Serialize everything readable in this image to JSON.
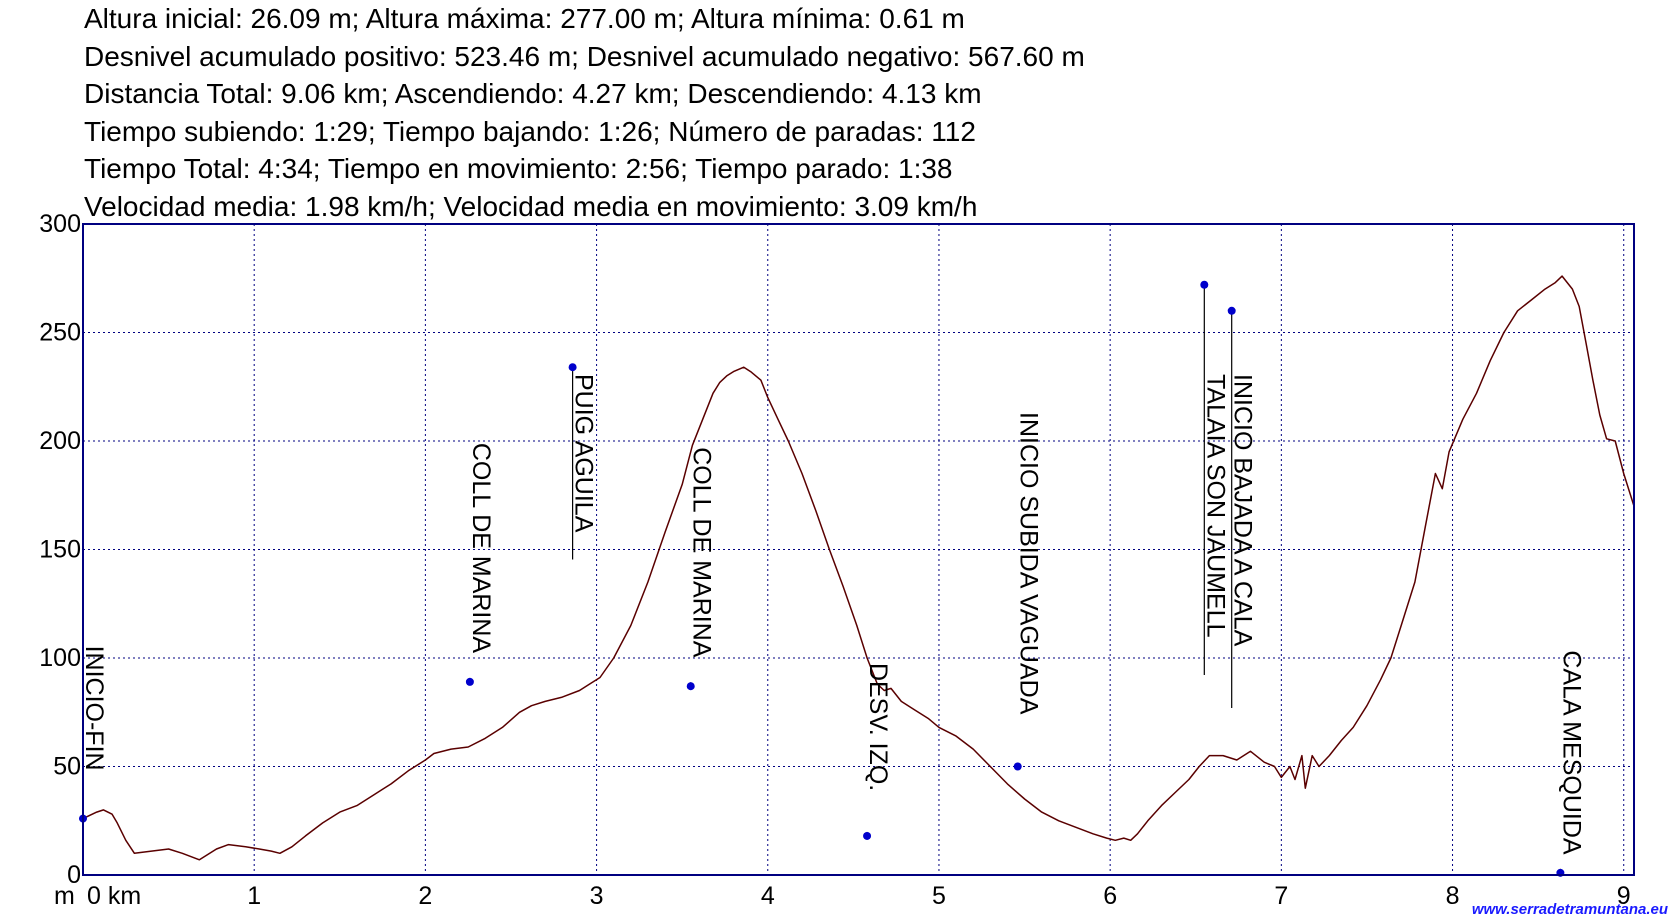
{
  "stats": [
    "Altura inicial: 26.09 m; Altura máxima: 277.00 m; Altura mínima: 0.61 m",
    "Desnivel acumulado positivo: 523.46 m; Desnivel acumulado negativo: 567.60 m",
    "Distancia Total: 9.06 km; Ascendiendo: 4.27 km; Descendiendo: 4.13 km",
    "Tiempo subiendo: 1:29; Tiempo bajando: 1:26; Número de paradas: 112",
    "Tiempo Total: 4:34; Tiempo en movimiento: 2:56; Tiempo parado: 1:38",
    "Velocidad media: 1.98 km/h; Velocidad media en movimiento: 3.09 km/h"
  ],
  "watermark": "www.serradetramuntana.eu",
  "chart_data": {
    "type": "line",
    "title": "",
    "xlabel": "km",
    "ylabel": "m",
    "xlim": [
      0,
      9.06
    ],
    "ylim": [
      0,
      300
    ],
    "x_ticks": [
      0,
      1,
      2,
      3,
      4,
      5,
      6,
      7,
      8,
      9
    ],
    "x_tick_labels": [
      "0 km",
      "1",
      "2",
      "3",
      "4",
      "5",
      "6",
      "7",
      "8",
      "9"
    ],
    "y_ticks": [
      0,
      50,
      100,
      150,
      200,
      250,
      300
    ],
    "y_tick_labels": [
      "0",
      "50",
      "100",
      "150",
      "200",
      "250",
      "300"
    ],
    "grid": true,
    "line_color": "#5a0000",
    "marker_color": "#0000cc",
    "profile": [
      [
        0.0,
        26
      ],
      [
        0.08,
        29
      ],
      [
        0.12,
        30
      ],
      [
        0.17,
        28
      ],
      [
        0.2,
        24
      ],
      [
        0.25,
        16
      ],
      [
        0.3,
        10
      ],
      [
        0.4,
        11
      ],
      [
        0.5,
        12
      ],
      [
        0.58,
        10
      ],
      [
        0.68,
        7
      ],
      [
        0.78,
        12
      ],
      [
        0.85,
        14
      ],
      [
        0.95,
        13
      ],
      [
        1.03,
        12
      ],
      [
        1.1,
        11
      ],
      [
        1.15,
        10
      ],
      [
        1.22,
        13
      ],
      [
        1.3,
        18
      ],
      [
        1.4,
        24
      ],
      [
        1.5,
        29
      ],
      [
        1.6,
        32
      ],
      [
        1.7,
        37
      ],
      [
        1.8,
        42
      ],
      [
        1.9,
        48
      ],
      [
        2.0,
        53
      ],
      [
        2.05,
        56
      ],
      [
        2.15,
        58
      ],
      [
        2.25,
        59
      ],
      [
        2.35,
        63
      ],
      [
        2.45,
        68
      ],
      [
        2.55,
        75
      ],
      [
        2.62,
        78
      ],
      [
        2.7,
        80
      ],
      [
        2.8,
        82
      ],
      [
        2.9,
        85
      ],
      [
        2.96,
        88
      ],
      [
        3.02,
        91
      ],
      [
        3.1,
        100
      ],
      [
        3.2,
        115
      ],
      [
        3.3,
        135
      ],
      [
        3.4,
        158
      ],
      [
        3.5,
        180
      ],
      [
        3.56,
        198
      ],
      [
        3.62,
        210
      ],
      [
        3.68,
        222
      ],
      [
        3.72,
        227
      ],
      [
        3.76,
        230
      ],
      [
        3.8,
        232
      ],
      [
        3.86,
        234
      ],
      [
        3.9,
        232
      ],
      [
        3.96,
        228
      ],
      [
        4.0,
        220
      ],
      [
        4.06,
        210
      ],
      [
        4.12,
        200
      ],
      [
        4.2,
        185
      ],
      [
        4.28,
        168
      ],
      [
        4.36,
        150
      ],
      [
        4.44,
        133
      ],
      [
        4.52,
        115
      ],
      [
        4.58,
        100
      ],
      [
        4.64,
        88
      ],
      [
        4.68,
        85
      ],
      [
        4.72,
        86
      ],
      [
        4.78,
        80
      ],
      [
        4.86,
        76
      ],
      [
        4.94,
        72
      ],
      [
        5.0,
        68
      ],
      [
        5.1,
        64
      ],
      [
        5.2,
        58
      ],
      [
        5.3,
        50
      ],
      [
        5.4,
        42
      ],
      [
        5.5,
        35
      ],
      [
        5.6,
        29
      ],
      [
        5.7,
        25
      ],
      [
        5.8,
        22
      ],
      [
        5.9,
        19
      ],
      [
        5.98,
        17
      ],
      [
        6.03,
        16
      ],
      [
        6.08,
        17
      ],
      [
        6.12,
        16
      ],
      [
        6.16,
        19
      ],
      [
        6.22,
        25
      ],
      [
        6.3,
        32
      ],
      [
        6.38,
        38
      ],
      [
        6.46,
        44
      ],
      [
        6.52,
        50
      ],
      [
        6.58,
        55
      ],
      [
        6.66,
        55
      ],
      [
        6.74,
        53
      ],
      [
        6.82,
        57
      ],
      [
        6.9,
        52
      ],
      [
        6.96,
        50
      ],
      [
        7.0,
        45
      ],
      [
        7.05,
        50
      ],
      [
        7.08,
        44
      ],
      [
        7.12,
        55
      ],
      [
        7.14,
        40
      ],
      [
        7.18,
        55
      ],
      [
        7.22,
        50
      ],
      [
        7.28,
        55
      ],
      [
        7.35,
        62
      ],
      [
        7.42,
        68
      ],
      [
        7.5,
        78
      ],
      [
        7.58,
        90
      ],
      [
        7.64,
        100
      ],
      [
        7.7,
        115
      ],
      [
        7.78,
        135
      ],
      [
        7.84,
        160
      ],
      [
        7.9,
        185
      ],
      [
        7.94,
        178
      ],
      [
        7.98,
        195
      ],
      [
        8.06,
        210
      ],
      [
        8.14,
        222
      ],
      [
        8.22,
        237
      ],
      [
        8.3,
        250
      ],
      [
        8.38,
        260
      ],
      [
        8.46,
        265
      ],
      [
        8.54,
        270
      ],
      [
        8.6,
        273
      ],
      [
        8.64,
        276
      ],
      [
        8.7,
        270
      ],
      [
        8.74,
        262
      ],
      [
        8.78,
        245
      ],
      [
        8.82,
        228
      ],
      [
        8.86,
        212
      ],
      [
        8.9,
        201
      ],
      [
        8.95,
        200
      ],
      [
        9.0,
        185
      ],
      [
        9.06,
        170
      ]
    ],
    "waypoints": [
      {
        "label": "INICIO-FIN",
        "x": 0.0,
        "y": 26
      },
      {
        "label": "COLL DE MARINA",
        "x": 2.26,
        "y": 89
      },
      {
        "label": "PUIG AGUILA",
        "x": 2.86,
        "y": 234
      },
      {
        "label": "COLL DE MARINA",
        "x": 3.55,
        "y": 87
      },
      {
        "label": "DESV. IZQ.",
        "x": 4.58,
        "y": 18
      },
      {
        "label": "INICIO SUBIDA VAGUADA",
        "x": 5.46,
        "y": 50
      },
      {
        "label": "TALAIA SON JAUMELL",
        "x": 6.55,
        "y": 272
      },
      {
        "label": "INICIO BAJADA A CALA",
        "x": 6.71,
        "y": 260
      },
      {
        "label": "CALA MESQUIDA",
        "x": 8.63,
        "y": 1
      }
    ]
  }
}
